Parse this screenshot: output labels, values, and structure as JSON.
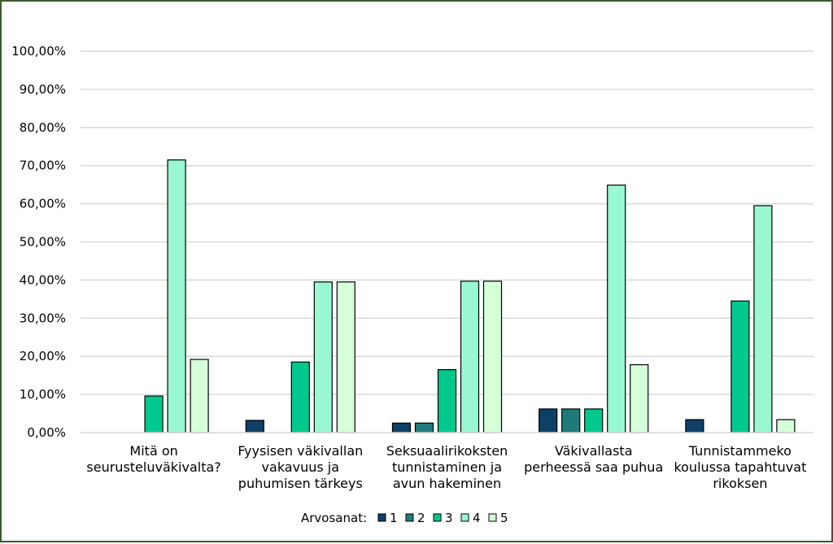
{
  "chart_data": {
    "type": "bar",
    "categories": [
      [
        "Mitä on",
        "seurusteluväkivalta?"
      ],
      [
        "Fyysisen väkivallan",
        "vakavuus ja",
        "puhumisen tärkeys"
      ],
      [
        "Seksuaalirikoksten",
        "tunnistaminen ja",
        "avun hakeminen"
      ],
      [
        "Väkivallasta",
        "perheessä saa puhua"
      ],
      [
        "Tunnistammeko",
        "koulussa tapahtuvat",
        "rikoksen"
      ]
    ],
    "series": [
      {
        "name": "1",
        "color": "#0e3f66",
        "values": [
          0,
          3.2,
          2.5,
          6.2,
          3.4
        ]
      },
      {
        "name": "2",
        "color": "#1f7a7a",
        "values": [
          0,
          0,
          2.5,
          6.2,
          0
        ]
      },
      {
        "name": "3",
        "color": "#00c98d",
        "values": [
          9.6,
          18.5,
          16.5,
          6.2,
          34.5
        ]
      },
      {
        "name": "4",
        "color": "#99f7d2",
        "values": [
          71.5,
          39.5,
          39.7,
          64.9,
          59.5
        ]
      },
      {
        "name": "5",
        "color": "#d4ffd9",
        "values": [
          19.2,
          39.5,
          39.7,
          17.8,
          3.4
        ]
      }
    ],
    "ylim": [
      0,
      100
    ],
    "yticks": [
      "0,00%",
      "10,00%",
      "20,00%",
      "30,00%",
      "40,00%",
      "50,00%",
      "60,00%",
      "70,00%",
      "80,00%",
      "90,00%",
      "100,00%"
    ],
    "grid": true,
    "legend": {
      "title": "Arvosanat:",
      "placement": "bottom"
    },
    "title": "",
    "xlabel": "",
    "ylabel": ""
  }
}
